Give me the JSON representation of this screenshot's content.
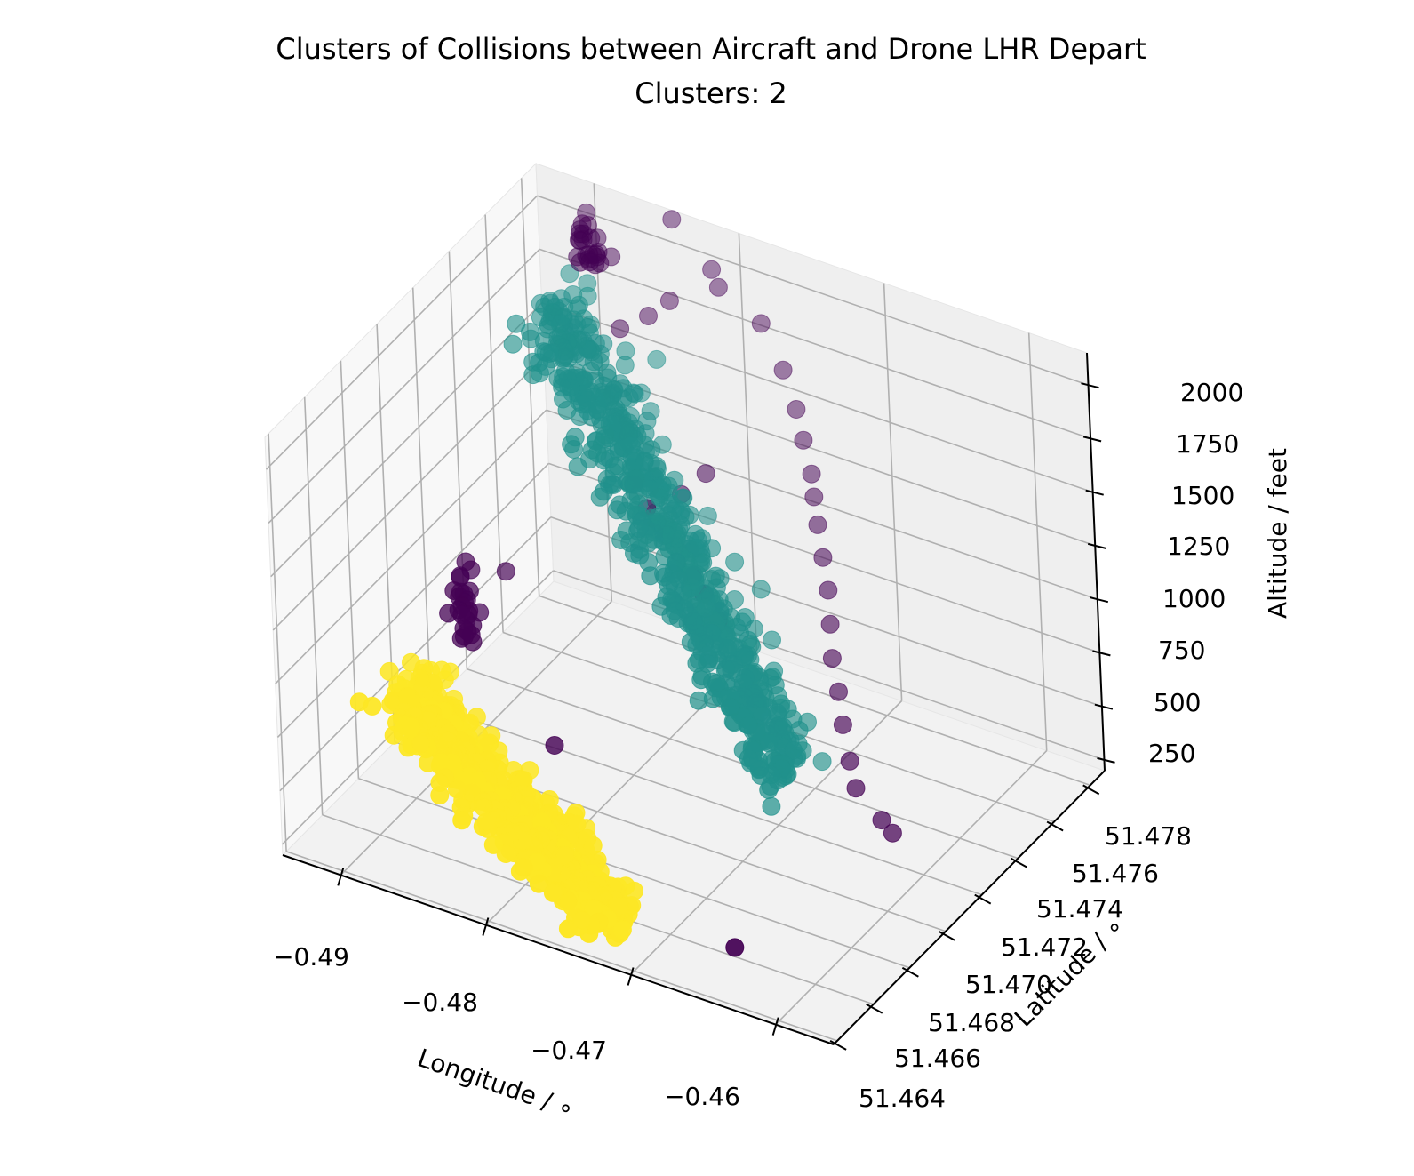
{
  "chart_data": {
    "type": "scatter",
    "subtype": "3d",
    "title": "Clusters of Collisions between Aircraft and Drone LHR Depart",
    "subtitle": "Clusters: 2",
    "xlabel": "Longitude / ∘",
    "ylabel": "Latitude / ∘",
    "zlabel": "Altitude / feet",
    "xlim": [
      -0.494,
      -0.456
    ],
    "ylim": [
      51.4638,
      51.4788
    ],
    "zlim": [
      200,
      2150
    ],
    "x_ticks": [
      "−0.49",
      "−0.48",
      "−0.47",
      "−0.46"
    ],
    "y_ticks": [
      "51.464",
      "51.466",
      "51.468",
      "51.470",
      "51.472",
      "51.474",
      "51.476",
      "51.478"
    ],
    "z_ticks": [
      "250",
      "500",
      "750",
      "1000",
      "1250",
      "1500",
      "1750",
      "2000"
    ],
    "grid": true,
    "legend": "none",
    "series": [
      {
        "color": "#fde725",
        "segments": [
          {
            "from": [
              -0.4895,
              51.467,
              820
            ],
            "to": [
              -0.4725,
              51.465,
              280
            ],
            "spread": [
              0.0012,
              0.0011,
              70
            ],
            "count": 650
          }
        ],
        "points": []
      },
      {
        "color": "#21918c",
        "segments": [
          {
            "from": [
              -0.489,
              51.4755,
              1870
            ],
            "to": [
              -0.4695,
              51.4722,
              420
            ],
            "spread": [
              0.0012,
              0.0012,
              70
            ],
            "count": 650
          }
        ],
        "points": [
          [
            -0.4835,
            51.4768,
            1650
          ],
          [
            -0.4842,
            51.4758,
            1540
          ],
          [
            -0.4745,
            51.475,
            940
          ],
          [
            -0.476,
            51.4748,
            1050
          ],
          [
            -0.4815,
            51.474,
            1300
          ],
          [
            -0.4778,
            51.4736,
            1120
          ]
        ]
      },
      {
        "color": "#440154",
        "segments": [
          {
            "from": [
              -0.4915,
              51.472,
              900
            ],
            "to": [
              -0.489,
              51.4705,
              720
            ],
            "spread": [
              0.0006,
              0.0005,
              50
            ],
            "count": 26
          },
          {
            "from": [
              -0.49,
              51.4778,
              2080
            ],
            "to": [
              -0.488,
              51.477,
              1960
            ],
            "spread": [
              0.0006,
              0.0005,
              50
            ],
            "count": 24
          }
        ],
        "points": [
          [
            -0.4844,
            51.4786,
            2130
          ],
          [
            -0.4815,
            51.4784,
            1980
          ],
          [
            -0.4808,
            51.4782,
            1930
          ],
          [
            -0.4778,
            51.4781,
            1840
          ],
          [
            -0.476,
            51.4778,
            1690
          ],
          [
            -0.4748,
            51.4775,
            1560
          ],
          [
            -0.474,
            51.4772,
            1460
          ],
          [
            -0.473,
            51.4768,
            1360
          ],
          [
            -0.4725,
            51.4765,
            1290
          ],
          [
            -0.4718,
            51.4761,
            1210
          ],
          [
            -0.471,
            51.4757,
            1110
          ],
          [
            -0.4702,
            51.4753,
            1010
          ],
          [
            -0.4695,
            51.4748,
            910
          ],
          [
            -0.4688,
            51.4743,
            810
          ],
          [
            -0.4678,
            51.4738,
            720
          ],
          [
            -0.4668,
            51.4732,
            640
          ],
          [
            -0.4655,
            51.4725,
            560
          ],
          [
            -0.4645,
            51.472,
            500
          ],
          [
            -0.462,
            51.4714,
            460
          ],
          [
            -0.461,
            51.4712,
            440
          ],
          [
            -0.4796,
            51.4762,
            1260
          ],
          [
            -0.4806,
            51.4756,
            1190
          ],
          [
            -0.4812,
            51.4742,
            1230
          ],
          [
            -0.4782,
            51.4742,
            980
          ],
          [
            -0.4772,
            51.474,
            940
          ],
          [
            -0.476,
            51.4738,
            860
          ],
          [
            -0.485,
            51.4776,
            1750
          ],
          [
            -0.484,
            51.478,
            1810
          ],
          [
            -0.4865,
            51.4772,
            1690
          ],
          [
            -0.489,
            51.4725,
            900
          ],
          [
            -0.465,
            51.4656,
            290
          ],
          [
            -0.4815,
            51.469,
            560
          ]
        ]
      }
    ]
  }
}
